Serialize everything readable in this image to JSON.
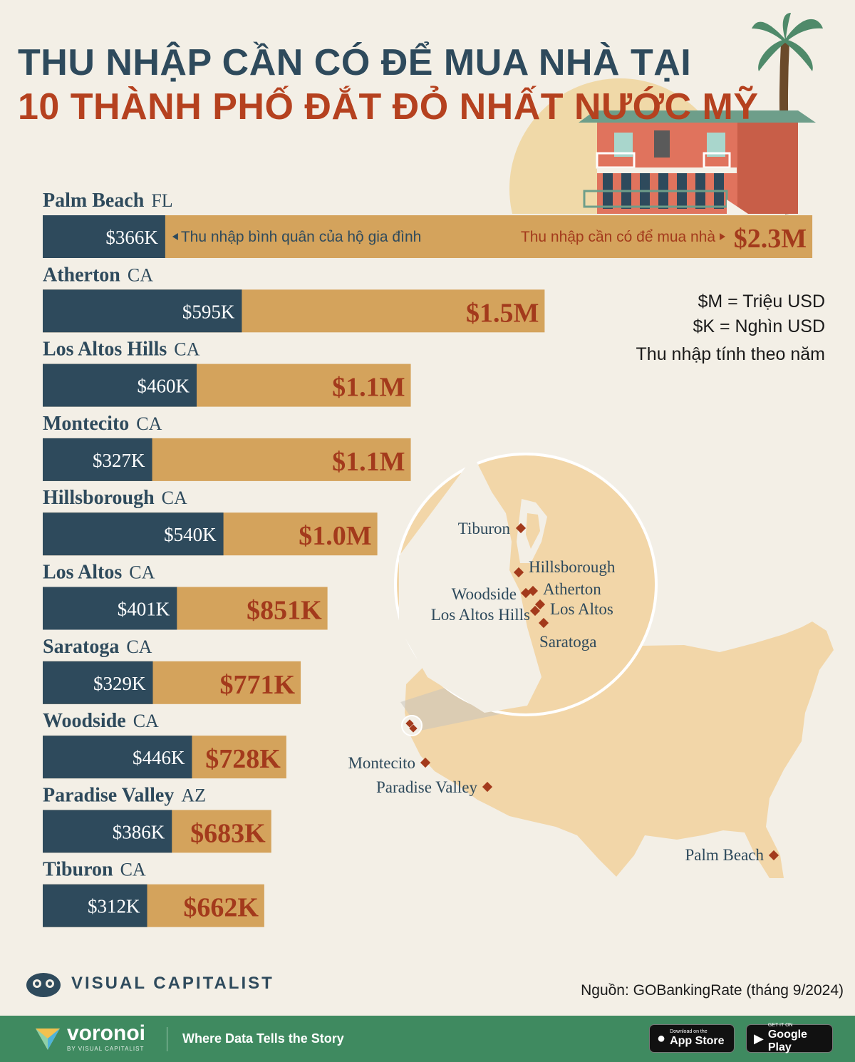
{
  "title": {
    "line1": "THU NHẬP CẦN CÓ ĐỂ MUA NHÀ TẠI",
    "line2": "10 THÀNH PHỐ ĐẮT ĐỎ NHẤT NƯỚC MỸ"
  },
  "legend": {
    "m_note": "$M = Triệu USD",
    "k_note": "$K = Nghìn USD",
    "period_note": "Thu nhập tính theo năm"
  },
  "annotations": {
    "household_income": "Thu nhập bình quân của hộ gia đình",
    "required_income": "Thu nhập cần có để mua nhà"
  },
  "chart_data": {
    "type": "bar",
    "orientation": "horizontal",
    "unit": "thousand USD",
    "categories": [
      "Palm Beach",
      "Atherton",
      "Los Altos Hills",
      "Montecito",
      "Hillsborough",
      "Los Altos",
      "Saratoga",
      "Woodside",
      "Paradise Valley",
      "Tiburon"
    ],
    "states": [
      "FL",
      "CA",
      "CA",
      "CA",
      "CA",
      "CA",
      "CA",
      "CA",
      "AZ",
      "CA"
    ],
    "series": [
      {
        "name": "Thu nhập bình quân của hộ gia đình",
        "values": [
          366,
          595,
          460,
          327,
          540,
          401,
          329,
          446,
          386,
          312
        ],
        "labels": [
          "$366K",
          "$595K",
          "$460K",
          "$327K",
          "$540K",
          "$401K",
          "$329K",
          "$446K",
          "$386K",
          "$312K"
        ],
        "color": "#2e4a5c"
      },
      {
        "name": "Thu nhập cần có để mua nhà",
        "values": [
          2300,
          1500,
          1100,
          1100,
          1000,
          851,
          771,
          728,
          683,
          662
        ],
        "labels": [
          "$2.3M",
          "$1.5M",
          "$1.1M",
          "$1.1M",
          "$1.0M",
          "$851K",
          "$771K",
          "$728K",
          "$683K",
          "$662K"
        ],
        "color": "#d4a35c"
      }
    ]
  },
  "map": {
    "inset_labels": [
      "Tiburon",
      "Hillsborough",
      "Atherton",
      "Woodside",
      "Los Altos",
      "Los Altos Hills",
      "Saratoga"
    ],
    "us_labels": [
      "Montecito",
      "Paradise Valley",
      "Palm Beach"
    ],
    "land_color": "#f2d6a8",
    "marker_color": "#a33a1c"
  },
  "branding": {
    "vc_name": "VISUAL CAPITALIST",
    "source": "Nguồn: GOBankingRate (tháng 9/2024)",
    "voronoi": "voronoi",
    "voronoi_by": "BY VISUAL CAPITALIST",
    "tagline": "Where Data Tells the Story",
    "appstore_small": "Download on the",
    "appstore_big": "App Store",
    "googleplay_small": "GET IT ON",
    "googleplay_big": "Google Play"
  }
}
